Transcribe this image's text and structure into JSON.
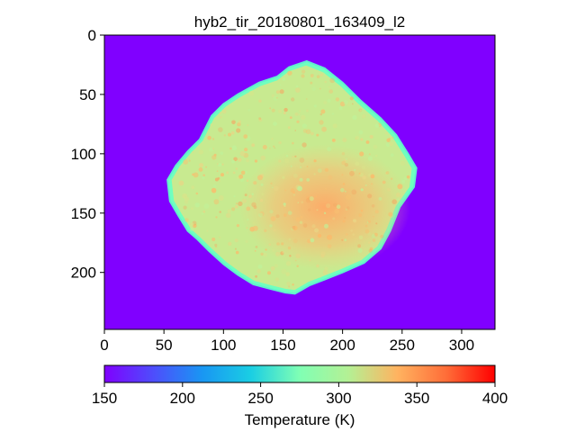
{
  "chart_data": {
    "type": "heatmap",
    "title": "hyb2_tir_20180801_163409_l2",
    "x": {
      "ticks": [
        0,
        50,
        100,
        150,
        200,
        250,
        300
      ],
      "lim": [
        0,
        328
      ]
    },
    "y": {
      "ticks": [
        0,
        50,
        100,
        150,
        200
      ],
      "lim": [
        248,
        0
      ],
      "inverted": true
    },
    "background_value": 150,
    "object": {
      "name": "asteroid",
      "outline": [
        [
          170,
          22
        ],
        [
          185,
          28
        ],
        [
          200,
          40
        ],
        [
          215,
          55
        ],
        [
          232,
          70
        ],
        [
          245,
          84
        ],
        [
          255,
          100
        ],
        [
          262,
          112
        ],
        [
          260,
          128
        ],
        [
          248,
          145
        ],
        [
          240,
          165
        ],
        [
          232,
          180
        ],
        [
          218,
          192
        ],
        [
          200,
          200
        ],
        [
          185,
          206
        ],
        [
          172,
          211
        ],
        [
          160,
          218
        ],
        [
          152,
          217
        ],
        [
          140,
          214
        ],
        [
          125,
          210
        ],
        [
          112,
          202
        ],
        [
          100,
          193
        ],
        [
          88,
          182
        ],
        [
          78,
          172
        ],
        [
          70,
          165
        ],
        [
          62,
          152
        ],
        [
          55,
          140
        ],
        [
          53,
          122
        ],
        [
          60,
          110
        ],
        [
          70,
          98
        ],
        [
          80,
          88
        ],
        [
          85,
          78
        ],
        [
          90,
          68
        ],
        [
          100,
          58
        ],
        [
          112,
          50
        ],
        [
          130,
          40
        ],
        [
          145,
          35
        ],
        [
          155,
          27
        ]
      ],
      "base_temperature_K": 320,
      "hot_region": {
        "center": [
          185,
          145
        ],
        "temperature_K": 345
      },
      "limb_temperature_K": 260
    },
    "colorbar": {
      "label": "Temperature (K)",
      "ticks": [
        150,
        200,
        250,
        300,
        350,
        400
      ],
      "range": [
        150,
        400
      ],
      "orientation": "horizontal",
      "colormap": "rainbow"
    }
  }
}
